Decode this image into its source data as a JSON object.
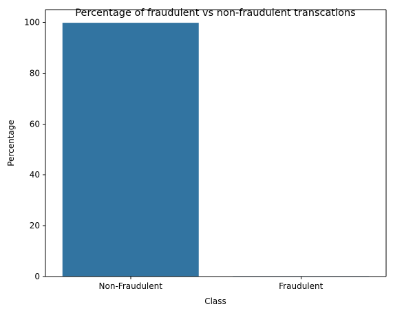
{
  "chart_data": {
    "type": "bar",
    "title": "Percentage of fraudulent vs non-fraudulent transcations",
    "xlabel": "Class",
    "ylabel": "Percentage",
    "categories": [
      "Non-Fraudulent",
      "Fraudulent"
    ],
    "values": [
      99.83,
      0.17
    ],
    "ylim": [
      0,
      105
    ],
    "yticks": [
      0,
      20,
      40,
      60,
      80,
      100
    ],
    "grid": false,
    "legend": "none",
    "bar_color": "#3274a1"
  }
}
